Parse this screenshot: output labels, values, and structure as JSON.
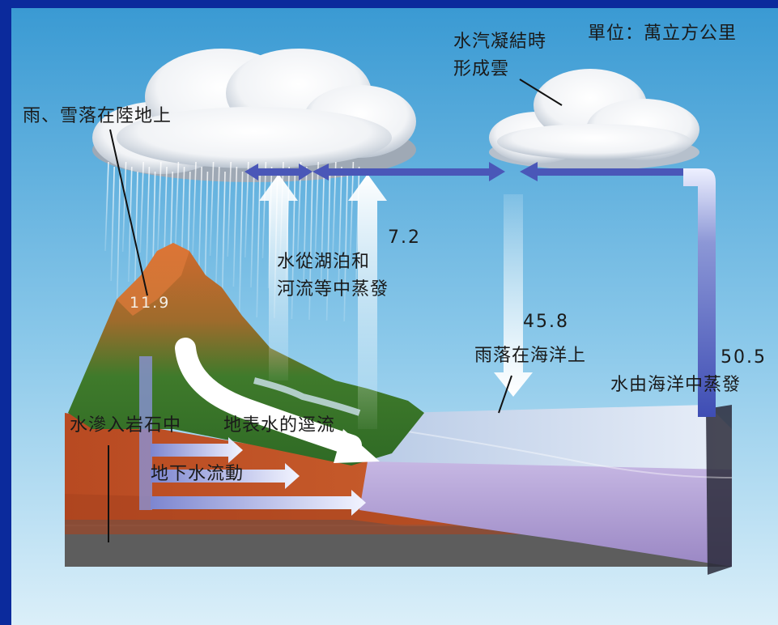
{
  "unit_label": "單位：萬立方公里",
  "labels": {
    "cloud_forming_line1": "水汽凝結時",
    "cloud_forming_line2": "形成雲",
    "rain_snow_on_land": "雨、雪落在陸地上",
    "lake_river_evap_line1": "水從湖泊和",
    "lake_river_evap_line2": "河流等中蒸發",
    "rain_on_ocean": "雨落在海洋上",
    "ocean_evap": "水由海洋中蒸發",
    "infiltration": "水滲入岩石中",
    "surface_runoff": "地表水的逕流",
    "groundwater_flow": "地下水流動"
  },
  "values": {
    "land_precip": "11.9",
    "land_evap": "7.2",
    "ocean_precip": "45.8",
    "ocean_evap": "50.5"
  },
  "colors": {
    "frame": "#0b2a9c",
    "sky_top": "#3e9fd6",
    "sky_bottom": "#d9eef8",
    "arrow_blue": "#4a57b8",
    "arrow_white": "#ffffff",
    "mountain_green": "#3d7a2a",
    "earth_orange": "#c85a2a",
    "ocean_violet": "#b5a6d6"
  }
}
